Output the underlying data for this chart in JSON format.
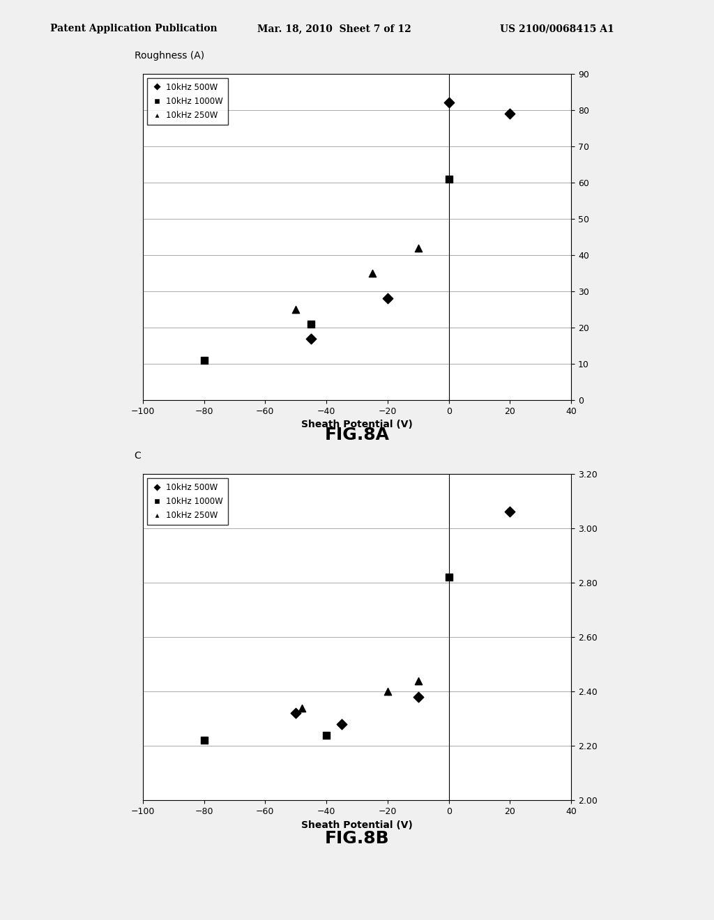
{
  "header_left": "Patent Application Publication",
  "header_mid": "Mar. 18, 2010  Sheet 7 of 12",
  "header_right": "US 2100/0068415 A1",
  "fig8a": {
    "title": "Roughness (A)",
    "xlabel": "Sheath Potential (V)",
    "xlim": [
      -100,
      40
    ],
    "ylim": [
      0,
      90
    ],
    "xticks": [
      -100,
      -80,
      -60,
      -40,
      -20,
      0,
      20,
      40
    ],
    "yticks": [
      0,
      10,
      20,
      30,
      40,
      50,
      60,
      70,
      80,
      90
    ],
    "series": [
      {
        "label": "10kHz 500W",
        "marker": "D",
        "x": [
          -45,
          -20,
          0,
          20
        ],
        "y": [
          17,
          28,
          82,
          79
        ]
      },
      {
        "label": "10kHz 1000W",
        "marker": "s",
        "x": [
          -80,
          -45,
          0
        ],
        "y": [
          11,
          21,
          61
        ]
      },
      {
        "label": "10kHz 250W",
        "marker": "^",
        "x": [
          -50,
          -25,
          -10
        ],
        "y": [
          25,
          35,
          42
        ]
      }
    ]
  },
  "fig8b": {
    "title": "C",
    "xlabel": "Sheath Potential (V)",
    "xlim": [
      -100,
      40
    ],
    "ylim": [
      2.0,
      3.2
    ],
    "xticks": [
      -100,
      -80,
      -60,
      -40,
      -20,
      0,
      20,
      40
    ],
    "yticks": [
      2.0,
      2.2,
      2.4,
      2.6,
      2.8,
      3.0,
      3.2
    ],
    "series": [
      {
        "label": "10kHz 500W",
        "marker": "D",
        "x": [
          -50,
          -35,
          -10,
          20
        ],
        "y": [
          2.32,
          2.28,
          2.38,
          3.06
        ]
      },
      {
        "label": "10kHz 1000W",
        "marker": "s",
        "x": [
          -80,
          -40,
          0
        ],
        "y": [
          2.22,
          2.24,
          2.82
        ]
      },
      {
        "label": "10kHz 250W",
        "marker": "^",
        "x": [
          -48,
          -20,
          -10
        ],
        "y": [
          2.34,
          2.4,
          2.44
        ]
      }
    ]
  },
  "caption_a": "FIG.8A",
  "caption_b": "FIG.8B",
  "bg_color": "#f0f0f0",
  "plot_bg": "#ffffff"
}
